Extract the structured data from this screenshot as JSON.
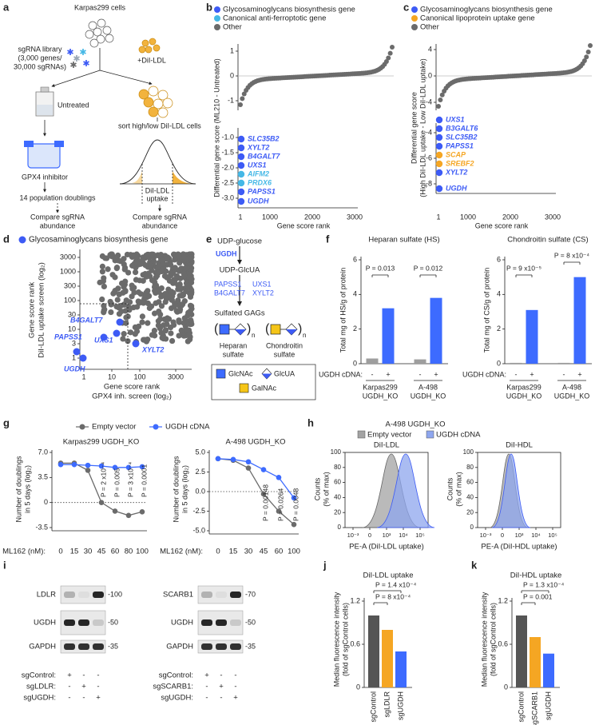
{
  "panel_labels": [
    "a",
    "b",
    "c",
    "d",
    "e",
    "f",
    "g",
    "h",
    "i",
    "j",
    "k"
  ],
  "a": {
    "cells": "Karpas299 cells",
    "library": [
      "sgRNA library",
      "(3,000 genes/",
      "30,000 sgRNAs)"
    ],
    "ldl": "+DiI-LDL",
    "untreated": "Untreated",
    "inhibitor": "GPX4 inhibitor",
    "doublings": "14 population doublings",
    "sort": "sort high/low DiI-LDL cells",
    "uptake": [
      "DiI-LDL",
      "uptake"
    ],
    "compare_left": [
      "Compare sgRNA",
      "abundance"
    ],
    "compare_right": [
      "Compare sgRNA",
      "abundance"
    ]
  },
  "b": {
    "legend": [
      {
        "name": "Glycosaminoglycans biosynthesis gene",
        "color": "#3d5bf5"
      },
      {
        "name": "Canonical anti-ferroptotic gene",
        "color": "#45b8e6"
      },
      {
        "name": "Other",
        "color": "#6b6b6b"
      }
    ],
    "ylabel": [
      "Differential gene score (ML210 - Untreated)"
    ],
    "upper_ticks": [
      "1",
      "0",
      "-1"
    ],
    "lower_ticks": [
      "-1.0",
      "-1.5",
      "-2.0",
      "-2.5",
      "-3.0"
    ],
    "xticks": [
      "1",
      "1000",
      "2000",
      "3000"
    ],
    "xlabel": "Gene score rank",
    "genes": [
      {
        "name": "SLC35B2",
        "color": "#3d5bf5"
      },
      {
        "name": "XYLT2",
        "color": "#3d5bf5"
      },
      {
        "name": "B4GALT7",
        "color": "#3d5bf5"
      },
      {
        "name": "UXS1",
        "color": "#3d5bf5"
      },
      {
        "name": "AIFM2",
        "color": "#45b8e6"
      },
      {
        "name": "PRDX6",
        "color": "#45b8e6"
      },
      {
        "name": "PAPSS1",
        "color": "#3d5bf5"
      },
      {
        "name": "UGDH",
        "color": "#3d5bf5"
      }
    ]
  },
  "c": {
    "legend": [
      {
        "name": "Glycosaminoglycans biosynthesis gene",
        "color": "#3d5bf5"
      },
      {
        "name": "Canonical lipoprotein uptake gene",
        "color": "#f5a623"
      },
      {
        "name": "Other",
        "color": "#6b6b6b"
      }
    ],
    "ylabel": [
      "Differential gene score",
      "(High DiI-LDL uptake - Low DiI-LDL uptake)"
    ],
    "upper_ticks": [
      "4",
      "0",
      "-4"
    ],
    "lower_ticks": [
      "-4",
      "-6",
      "-8"
    ],
    "xticks": [
      "1",
      "1000",
      "2000",
      "3000"
    ],
    "xlabel": "Gene score rank",
    "genes": [
      {
        "name": "UXS1",
        "color": "#3d5bf5"
      },
      {
        "name": "B3GALT6",
        "color": "#3d5bf5"
      },
      {
        "name": "SLC35B2",
        "color": "#3d5bf5"
      },
      {
        "name": "PAPSS1",
        "color": "#3d5bf5"
      },
      {
        "name": "SCAP",
        "color": "#f5a623"
      },
      {
        "name": "SREBF2",
        "color": "#f5a623"
      },
      {
        "name": "XYLT2",
        "color": "#3d5bf5"
      },
      {
        "name": "UGDH",
        "color": "#3d5bf5"
      }
    ]
  },
  "d": {
    "legend": {
      "name": "Glycosaminoglycans biosynthesis gene",
      "color": "#3d5bf5"
    },
    "yticks": [
      "3000",
      "1000",
      "300",
      "100",
      "30",
      "10",
      "3",
      "1"
    ],
    "xticks": [
      "1",
      "10",
      "100",
      "3000"
    ],
    "ylabel": [
      "Gene score rank",
      "DiI-LDL uptake screen (log₂)"
    ],
    "xlabel": [
      "Gene score rank",
      "GPX4 inh. screen (log₂)"
    ],
    "genes": [
      "B4GALT7",
      "PAPSS1",
      "UXS1",
      "XYLT2",
      "UGDH"
    ]
  },
  "e": {
    "steps": [
      "UDP-glucose",
      "UGDH",
      "UDP-GlcUA"
    ],
    "enzymes": [
      "PAPSS1",
      "B4GALT7",
      "UXS1",
      "XYLT2"
    ],
    "product": "Sulfated GAGs",
    "repeat": "n",
    "structures": [
      [
        "Heparan",
        "sulfate"
      ],
      [
        "Chondroitin",
        "sulfate"
      ]
    ],
    "legend": [
      "GlcNAc",
      "GlcUA",
      "GalNAc"
    ]
  },
  "f": {
    "cdna": "UGDH cDNA:",
    "signs": [
      "-",
      "+",
      "-",
      "+"
    ],
    "groups": [
      [
        "Karpas299",
        "UGDH_KO"
      ],
      [
        "A-498",
        "UGDH_KO"
      ]
    ],
    "colors": [
      "#9e9e9e",
      "#3d6bff",
      "#9e9e9e",
      "#3d6bff"
    ],
    "charts": [
      {
        "title": "Heparan sulfate (HS)",
        "ylabel": "Total mg of HS/g of protein",
        "ylim": [
          0,
          6
        ],
        "yticks": [
          0,
          2,
          4,
          6
        ],
        "values": [
          0.3,
          3.2,
          0.25,
          3.8
        ],
        "pvalues": [
          "P = 0.013",
          "P = 0.012"
        ]
      },
      {
        "title": "Chondroitin sulfate (CS)",
        "ylabel": "Total mg of CS/g of protein",
        "ylim": [
          0,
          6
        ],
        "yticks": [
          0,
          2,
          4,
          6
        ],
        "values": [
          0.05,
          3.1,
          0.05,
          5.0
        ],
        "pvalues": [
          "P = 9 x10⁻⁵",
          "P = 8 x10⁻⁴"
        ]
      }
    ]
  },
  "g": {
    "legend": [
      {
        "name": "Empty vector",
        "color": "#6b6b6b"
      },
      {
        "name": "UGDH cDNA",
        "color": "#3d6bff"
      }
    ],
    "ylabel": [
      "Number of doublings",
      "in 5 days (log₂)"
    ],
    "xlabel": "ML162 (nM):",
    "charts": [
      {
        "title": "Karpas299 UGDH_KO",
        "categories": [
          "0",
          "15",
          "30",
          "45",
          "60",
          "80",
          "100"
        ],
        "ylim": [
          -3.5,
          7
        ],
        "yticks": [
          {
            "value": 7,
            "label": "7.0"
          },
          3.5,
          0,
          -3.5
        ],
        "series": [
          [
            5.5,
            5.5,
            4.5,
            0,
            -1.2,
            -1.8,
            -1.3
          ],
          [
            5.3,
            5.3,
            5.2,
            5.1,
            4.9,
            4.9,
            5.0
          ]
        ],
        "pvalues": [
          "P = 2 x10⁻⁴",
          "P = 0.005",
          "P = 3 x10⁻⁴",
          "P = 0.0001"
        ]
      },
      {
        "title": "A-498 UGDH_KO",
        "categories": [
          "0",
          "15",
          "30",
          "45",
          "60",
          "100"
        ],
        "ylim": [
          -5,
          5
        ],
        "yticks": [
          {
            "value": 5,
            "label": "5.0"
          },
          2.5,
          {
            "value": 0,
            "label": "0.0"
          },
          -2.5,
          {
            "value": -5,
            "label": "-5.0"
          }
        ],
        "series": [
          [
            4.2,
            4.0,
            3.0,
            -0.3,
            -2.5,
            -4.2
          ],
          [
            4.2,
            4.1,
            3.8,
            2.8,
            1.8,
            -0.8
          ]
        ],
        "pvalues": [
          "P = 0.00148",
          "P = 0.0264",
          "P = 0.0048"
        ]
      }
    ]
  },
  "h": {
    "title": "A-498 UGDH_KO",
    "legend": [
      {
        "name": "Empty vector",
        "color": "#a3a3a3"
      },
      {
        "name": "UGDH cDNA",
        "color": "#8ea6ee"
      }
    ],
    "ylabel": [
      "Counts",
      "(% of max)"
    ],
    "yticks": [
      "100",
      "80",
      "60",
      "40",
      "20",
      "0"
    ],
    "xticks": [
      "10⁻³",
      "0",
      "10³",
      "10⁴",
      "10⁵"
    ],
    "plots": [
      {
        "title": "DiI-LDL",
        "xlabel": "PE-A (DiI-LDL uptake)"
      },
      {
        "title": "DiI-HDL",
        "xlabel": "PE-A (DiI-HDL uptake)"
      }
    ]
  },
  "i": {
    "blots": [
      {
        "bands": [
          "LDLR",
          "UGDH",
          "GAPDH"
        ],
        "markers": [
          "-100",
          "-50",
          "-35"
        ],
        "rows": [
          {
            "label": "sgControl:",
            "signs": [
              "+",
              "-",
              "-"
            ]
          },
          {
            "label": "sgLDLR:",
            "signs": [
              "-",
              "+",
              "-"
            ]
          },
          {
            "label": "sgUGDH:",
            "signs": [
              "-",
              "-",
              "+"
            ]
          }
        ]
      },
      {
        "bands": [
          "SCARB1",
          "UGDH",
          "GAPDH"
        ],
        "markers": [
          "-70",
          "-50",
          "-35"
        ],
        "rows": [
          {
            "label": "sgControl:",
            "signs": [
              "+",
              "-",
              "-"
            ]
          },
          {
            "label": "sgSCARB1:",
            "signs": [
              "-",
              "+",
              "-"
            ]
          },
          {
            "label": "sgUGDH:",
            "signs": [
              "-",
              "-",
              "+"
            ]
          }
        ]
      }
    ]
  },
  "j": {
    "title": "DiI-LDL uptake",
    "ylabel": [
      "Median fluorescence intensity",
      "(fold of sgControl cells)"
    ],
    "ylim": [
      0,
      1.2
    ],
    "yticks": [
      0,
      0.6,
      1.2
    ],
    "categories": [
      "sgControl",
      "sgLDLR",
      "sgUGDH"
    ],
    "values": [
      1.0,
      0.8,
      0.5
    ],
    "colors": [
      "#555555",
      "#f5a623",
      "#3d6bff"
    ],
    "pvalues": [
      "P = 1.4 x10⁻⁴",
      "P = 8 x10⁻⁴"
    ]
  },
  "k": {
    "title": "DiI-HDL uptake",
    "ylabel": [
      "Median fluorescence intensity",
      "(fold of sgControl cells)"
    ],
    "ylim": [
      0,
      1.2
    ],
    "yticks": [
      0,
      0.6,
      1.2
    ],
    "categories": [
      "sgControl",
      "sgSCARB1",
      "sgUGDH"
    ],
    "values": [
      1.0,
      0.7,
      0.47
    ],
    "colors": [
      "#555555",
      "#f5a623",
      "#3d6bff"
    ],
    "pvalues": [
      "P = 1.3 x10⁻⁴",
      "P = 0.001"
    ]
  }
}
